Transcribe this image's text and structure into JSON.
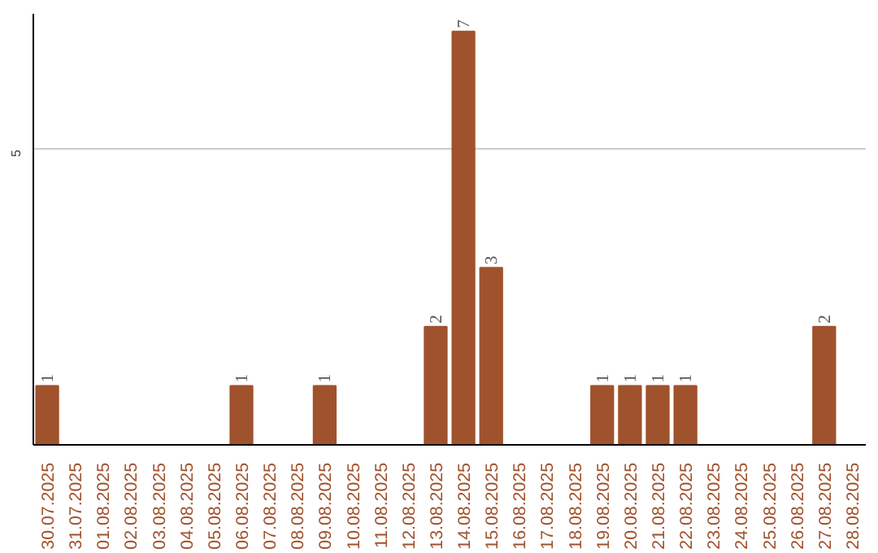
{
  "chart_data": {
    "type": "bar",
    "categories": [
      "30.07.2025",
      "31.07.2025",
      "01.08.2025",
      "02.08.2025",
      "03.08.2025",
      "04.08.2025",
      "05.08.2025",
      "06.08.2025",
      "07.08.2025",
      "08.08.2025",
      "09.08.2025",
      "10.08.2025",
      "11.08.2025",
      "12.08.2025",
      "13.08.2025",
      "14.08.2025",
      "15.08.2025",
      "16.08.2025",
      "17.08.2025",
      "18.08.2025",
      "19.08.2025",
      "20.08.2025",
      "21.08.2025",
      "22.08.2025",
      "23.08.2025",
      "24.08.2025",
      "25.08.2025",
      "26.08.2025",
      "27.08.2025",
      "28.08.2025"
    ],
    "values": [
      1,
      0,
      0,
      0,
      0,
      0,
      0,
      1,
      0,
      0,
      1,
      0,
      0,
      0,
      2,
      7,
      3,
      0,
      0,
      0,
      1,
      1,
      1,
      1,
      0,
      0,
      0,
      0,
      2,
      0
    ],
    "color": "#a0522d",
    "ylim": [
      0,
      7.3
    ],
    "yticks": [
      5
    ],
    "grid": "y",
    "value_labels": [
      "1",
      null,
      null,
      null,
      null,
      null,
      null,
      "1",
      null,
      null,
      "1",
      null,
      null,
      null,
      "2",
      "7",
      "3",
      null,
      null,
      null,
      "1",
      "1",
      "1",
      "1",
      null,
      null,
      null,
      null,
      "2",
      null
    ]
  }
}
